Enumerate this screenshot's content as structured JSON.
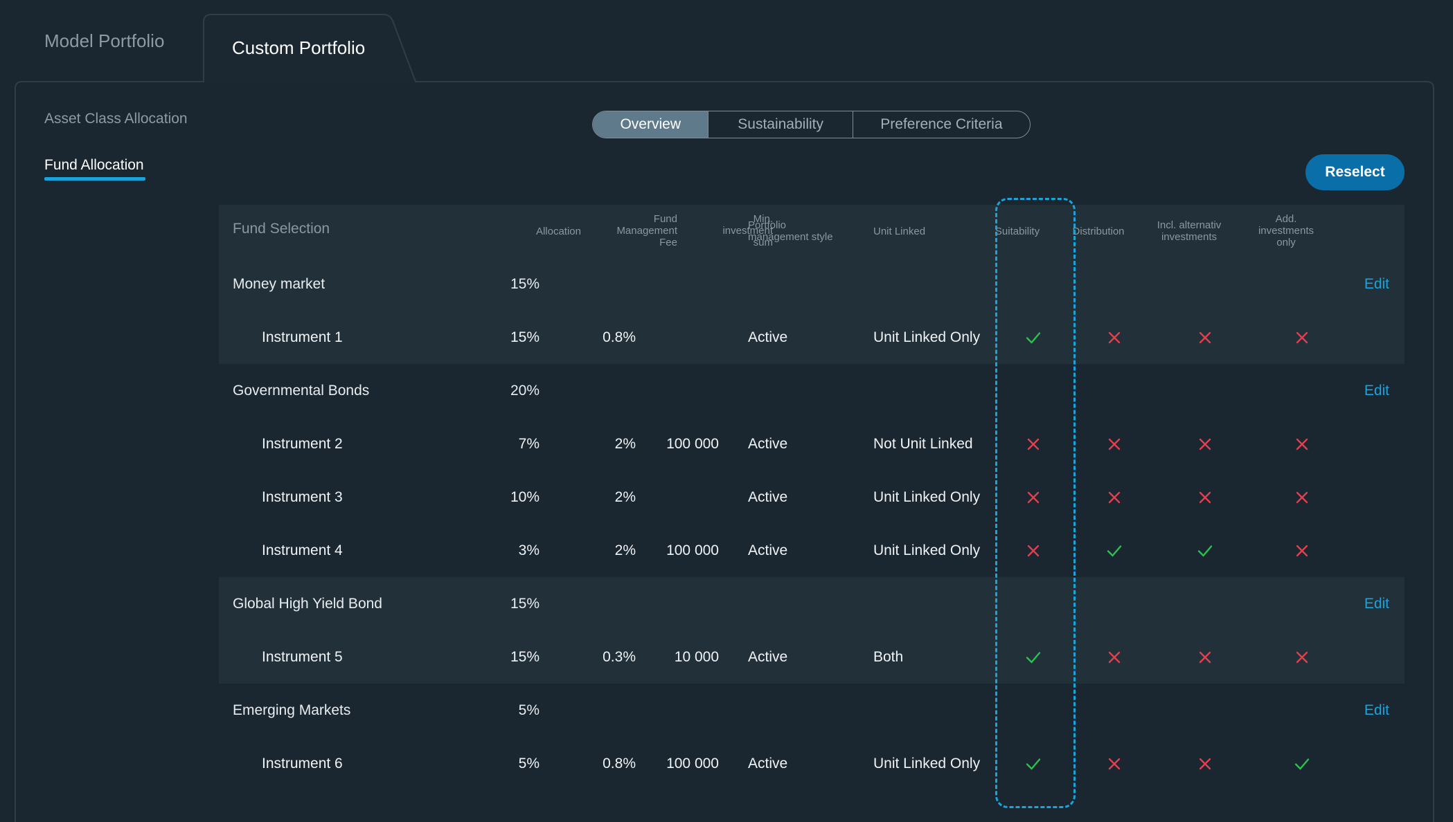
{
  "tabs": [
    {
      "label": "Model Portfolio",
      "active": false
    },
    {
      "label": "Custom Portfolio",
      "active": true
    }
  ],
  "left_nav": {
    "asset_class": "Asset Class Allocation",
    "fund_allocation": "Fund Allocation"
  },
  "segments": [
    {
      "label": "Overview",
      "active": true
    },
    {
      "label": "Sustainability",
      "active": false
    },
    {
      "label": "Preference Criteria",
      "active": false
    }
  ],
  "reselect_label": "Reselect",
  "headers": {
    "fund_selection": "Fund Selection",
    "allocation": "Allocation",
    "fee_l1": "Fund",
    "fee_l2": "Management",
    "fee_l3": "Fee",
    "min_l1": "Min.",
    "min_l2": "investment",
    "min_l3": "sum",
    "style_l1": "Portfolio",
    "style_l2": "management style",
    "unit_linked": "Unit Linked",
    "suitability": "Suitability",
    "distribution": "Distribution",
    "alt_l1": "Incl. alternativ",
    "alt_l2": "investments",
    "add_l1": "Add.",
    "add_l2": "investments",
    "add_l3": "only"
  },
  "edit_label": "Edit",
  "groups": [
    {
      "name": "Money market",
      "allocation": "15%",
      "instruments": [
        {
          "name": "Instrument 1",
          "allocation": "15%",
          "fee": "0.8%",
          "min": "",
          "style": "Active",
          "unit_linked": "Unit Linked Only",
          "suitability": true,
          "distribution": false,
          "alternative": false,
          "additional": false
        }
      ]
    },
    {
      "name": "Governmental Bonds",
      "allocation": "20%",
      "instruments": [
        {
          "name": "Instrument 2",
          "allocation": "7%",
          "fee": "2%",
          "min": "100 000",
          "style": "Active",
          "unit_linked": "Not Unit Linked",
          "suitability": false,
          "distribution": false,
          "alternative": false,
          "additional": false
        },
        {
          "name": "Instrument 3",
          "allocation": "10%",
          "fee": "2%",
          "min": "",
          "style": "Active",
          "unit_linked": "Unit Linked Only",
          "suitability": false,
          "distribution": false,
          "alternative": false,
          "additional": false
        },
        {
          "name": "Instrument 4",
          "allocation": "3%",
          "fee": "2%",
          "min": "100 000",
          "style": "Active",
          "unit_linked": "Unit Linked Only",
          "suitability": false,
          "distribution": true,
          "alternative": true,
          "additional": false
        }
      ]
    },
    {
      "name": "Global High Yield Bond",
      "allocation": "15%",
      "instruments": [
        {
          "name": "Instrument 5",
          "allocation": "15%",
          "fee": "0.3%",
          "min": "10 000",
          "style": "Active",
          "unit_linked": "Both",
          "suitability": true,
          "distribution": false,
          "alternative": false,
          "additional": false
        }
      ]
    },
    {
      "name": "Emerging Markets",
      "allocation": "5%",
      "instruments": [
        {
          "name": "Instrument 6",
          "allocation": "5%",
          "fee": "0.8%",
          "min": "100 000",
          "style": "Active",
          "unit_linked": "Unit Linked Only",
          "suitability": true,
          "distribution": false,
          "alternative": false,
          "additional": true
        }
      ]
    }
  ],
  "colors": {
    "background": "#1a2630",
    "accent": "#1aa4dc",
    "check": "#2bc24f",
    "cross": "#e2404f",
    "button": "#0a6fa8"
  }
}
